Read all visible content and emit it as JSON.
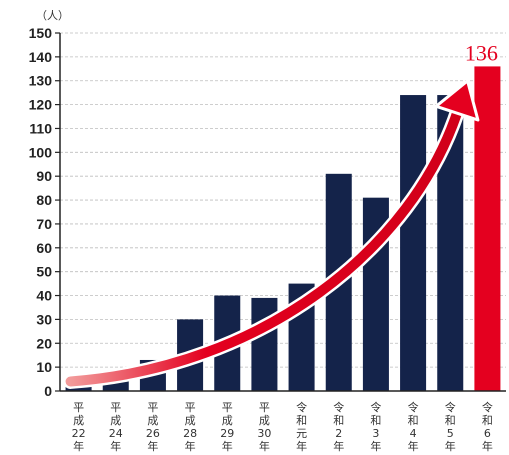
{
  "chart_data": {
    "type": "bar",
    "unit": "（人）",
    "categories": [
      [
        "平",
        "成",
        "22",
        "年"
      ],
      [
        "平",
        "成",
        "24",
        "年"
      ],
      [
        "平",
        "成",
        "26",
        "年"
      ],
      [
        "平",
        "成",
        "28",
        "年"
      ],
      [
        "平",
        "成",
        "29",
        "年"
      ],
      [
        "平",
        "成",
        "30",
        "年"
      ],
      [
        "令",
        "和",
        "元",
        "年"
      ],
      [
        "令",
        "和",
        "2",
        "年"
      ],
      [
        "令",
        "和",
        "3",
        "年"
      ],
      [
        "令",
        "和",
        "4",
        "年"
      ],
      [
        "令",
        "和",
        "5",
        "年"
      ],
      [
        "令",
        "和",
        "6",
        "年"
      ]
    ],
    "values": [
      5,
      8,
      13,
      30,
      40,
      39,
      45,
      91,
      81,
      124,
      124,
      136
    ],
    "highlight_index": 11,
    "highlight_label": "136",
    "ylim": [
      0,
      150
    ],
    "yticks": [
      0,
      10,
      20,
      30,
      40,
      50,
      60,
      70,
      80,
      90,
      100,
      110,
      120,
      130,
      140,
      150
    ],
    "grid": true,
    "trend_arrow": true,
    "colors": {
      "bar": "#14234a",
      "highlight_bar": "#e4001f",
      "arrow": "#e4001f",
      "grid": "#bdbdbd",
      "axis": "#222222"
    }
  }
}
